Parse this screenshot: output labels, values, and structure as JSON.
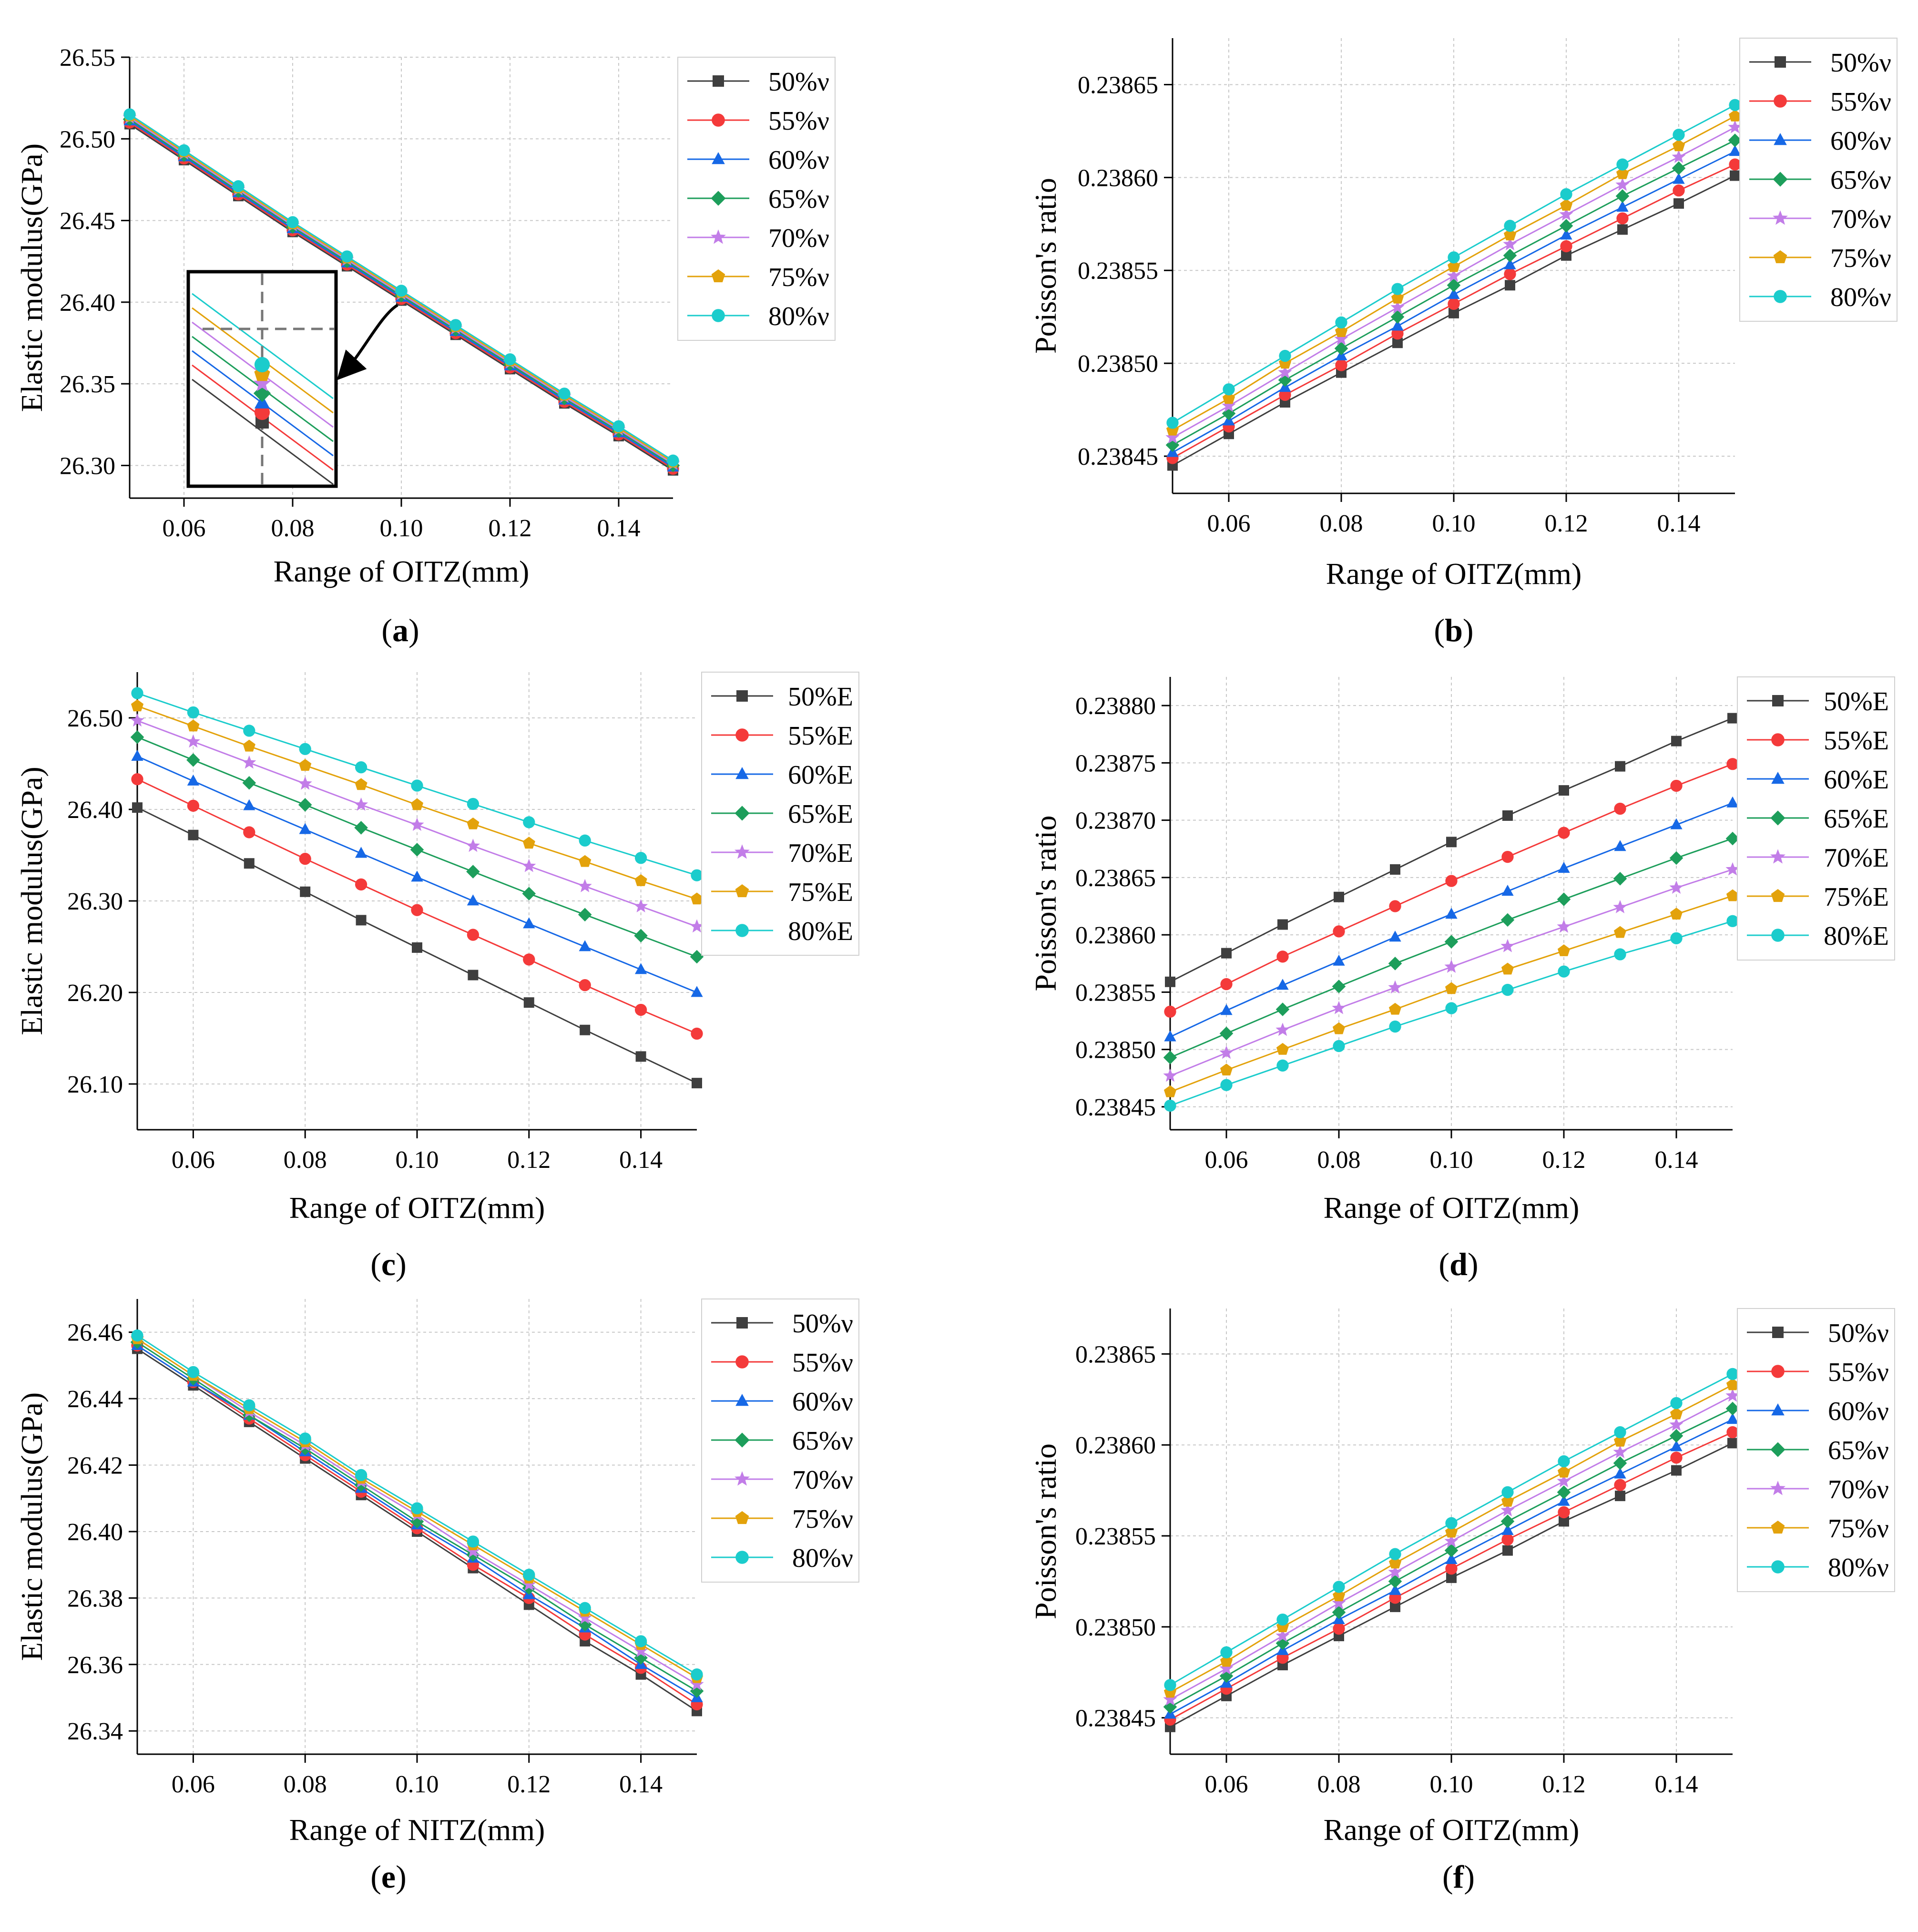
{
  "figure": {
    "x_values": [
      0.05,
      0.06,
      0.07,
      0.08,
      0.09,
      0.1,
      0.11,
      0.12,
      0.13,
      0.14,
      0.15
    ],
    "series_colors": [
      "#3f3f3f",
      "#f43a3a",
      "#1668e6",
      "#1d9e5b",
      "#c27de8",
      "#e3a20b",
      "#1bcccc"
    ],
    "marker_shapes": [
      "square",
      "circle",
      "triangle",
      "diamond",
      "star",
      "pentagon",
      "circle"
    ]
  },
  "chart_data": [
    {
      "id": "a",
      "type": "line",
      "panel_label": "a",
      "xlabel": "Range of OITZ(mm)",
      "ylabel": "Elastic modulus(GPa)",
      "xlim": [
        0.05,
        0.15
      ],
      "ylim": [
        26.28,
        26.55
      ],
      "xticks": [
        "0.06",
        "0.08",
        "0.10",
        "0.12",
        "0.14"
      ],
      "yticks": [
        "26.30",
        "26.35",
        "26.40",
        "26.45",
        "26.50",
        "26.55"
      ],
      "legend_position": "top-right",
      "has_inset": true,
      "x": [
        0.05,
        0.06,
        0.07,
        0.08,
        0.09,
        0.1,
        0.11,
        0.12,
        0.13,
        0.14,
        0.15
      ],
      "series": [
        {
          "name": "50%ν",
          "values": [
            26.509,
            26.487,
            26.465,
            26.443,
            26.422,
            26.401,
            26.38,
            26.359,
            26.338,
            26.318,
            26.297
          ]
        },
        {
          "name": "55%ν",
          "values": [
            26.51,
            26.488,
            26.466,
            26.444,
            26.423,
            26.402,
            26.381,
            26.36,
            26.339,
            26.319,
            26.298
          ]
        },
        {
          "name": "60%ν",
          "values": [
            26.511,
            26.489,
            26.467,
            26.445,
            26.424,
            26.403,
            26.382,
            26.361,
            26.34,
            26.32,
            26.299
          ]
        },
        {
          "name": "65%ν",
          "values": [
            26.512,
            26.49,
            26.468,
            26.446,
            26.425,
            26.404,
            26.383,
            26.362,
            26.341,
            26.321,
            26.3
          ]
        },
        {
          "name": "70%ν",
          "values": [
            26.513,
            26.491,
            26.469,
            26.447,
            26.426,
            26.405,
            26.384,
            26.363,
            26.342,
            26.322,
            26.301
          ]
        },
        {
          "name": "75%ν",
          "values": [
            26.514,
            26.492,
            26.47,
            26.448,
            26.427,
            26.406,
            26.385,
            26.364,
            26.343,
            26.323,
            26.302
          ]
        },
        {
          "name": "80%ν",
          "values": [
            26.515,
            26.493,
            26.471,
            26.449,
            26.428,
            26.407,
            26.386,
            26.365,
            26.344,
            26.324,
            26.303
          ]
        }
      ]
    },
    {
      "id": "b",
      "type": "line",
      "panel_label": "b",
      "xlabel": "Range of OITZ(mm)",
      "ylabel": "Poisson's ratio",
      "xlim": [
        0.05,
        0.15
      ],
      "ylim": [
        0.23843,
        0.238675
      ],
      "xticks": [
        "0.06",
        "0.08",
        "0.10",
        "0.12",
        "0.14"
      ],
      "yticks": [
        "0.23845",
        "0.23850",
        "0.23855",
        "0.23860",
        "0.23865"
      ],
      "legend_position": "top-right",
      "x": [
        0.05,
        0.06,
        0.07,
        0.08,
        0.09,
        0.1,
        0.11,
        0.12,
        0.13,
        0.14,
        0.15
      ],
      "series": [
        {
          "name": "50%ν",
          "values": [
            0.238445,
            0.238462,
            0.238479,
            0.238495,
            0.238511,
            0.238527,
            0.238542,
            0.238558,
            0.238572,
            0.238586,
            0.238601
          ]
        },
        {
          "name": "55%ν",
          "values": [
            0.238449,
            0.238466,
            0.238483,
            0.238499,
            0.238516,
            0.238532,
            0.238548,
            0.238563,
            0.238578,
            0.238593,
            0.238607
          ]
        },
        {
          "name": "60%ν",
          "values": [
            0.238452,
            0.238469,
            0.238487,
            0.238504,
            0.23852,
            0.238537,
            0.238553,
            0.238569,
            0.238584,
            0.238599,
            0.238614
          ]
        },
        {
          "name": "65%ν",
          "values": [
            0.238456,
            0.238473,
            0.238491,
            0.238508,
            0.238525,
            0.238542,
            0.238558,
            0.238574,
            0.23859,
            0.238605,
            0.23862
          ]
        },
        {
          "name": "70%ν",
          "values": [
            0.23846,
            0.238477,
            0.238495,
            0.238513,
            0.23853,
            0.238547,
            0.238564,
            0.23858,
            0.238596,
            0.238611,
            0.238627
          ]
        },
        {
          "name": "75%ν",
          "values": [
            0.238464,
            0.238481,
            0.2385,
            0.238517,
            0.238535,
            0.238552,
            0.238569,
            0.238585,
            0.238602,
            0.238617,
            0.238633
          ]
        },
        {
          "name": "80%ν",
          "values": [
            0.238468,
            0.238486,
            0.238504,
            0.238522,
            0.23854,
            0.238557,
            0.238574,
            0.238591,
            0.238607,
            0.238623,
            0.238639
          ]
        }
      ]
    },
    {
      "id": "c",
      "type": "line",
      "panel_label": "c",
      "xlabel": "Range of OITZ(mm)",
      "ylabel": "Elastic modulus(GPa)",
      "xlim": [
        0.05,
        0.15
      ],
      "ylim": [
        26.05,
        26.55
      ],
      "xticks": [
        "0.06",
        "0.08",
        "0.10",
        "0.12",
        "0.14"
      ],
      "yticks": [
        "26.10",
        "26.20",
        "26.30",
        "26.40",
        "26.50"
      ],
      "legend_position": "top-right",
      "x": [
        0.05,
        0.06,
        0.07,
        0.08,
        0.09,
        0.1,
        0.11,
        0.12,
        0.13,
        0.14,
        0.15
      ],
      "series": [
        {
          "name": "50%E",
          "values": [
            26.402,
            26.372,
            26.341,
            26.31,
            26.279,
            26.249,
            26.219,
            26.189,
            26.159,
            26.13,
            26.101
          ]
        },
        {
          "name": "55%E",
          "values": [
            26.433,
            26.404,
            26.375,
            26.346,
            26.318,
            26.29,
            26.263,
            26.236,
            26.208,
            26.181,
            26.155
          ]
        },
        {
          "name": "60%E",
          "values": [
            26.458,
            26.431,
            26.404,
            26.378,
            26.352,
            26.326,
            26.3,
            26.275,
            26.25,
            26.225,
            26.2
          ]
        },
        {
          "name": "65%E",
          "values": [
            26.479,
            26.454,
            26.429,
            26.405,
            26.38,
            26.356,
            26.332,
            26.308,
            26.285,
            26.262,
            26.239
          ]
        },
        {
          "name": "70%E",
          "values": [
            26.497,
            26.474,
            26.451,
            26.428,
            26.405,
            26.383,
            26.36,
            26.338,
            26.316,
            26.294,
            26.272
          ]
        },
        {
          "name": "75%E",
          "values": [
            26.513,
            26.491,
            26.469,
            26.448,
            26.427,
            26.405,
            26.384,
            26.363,
            26.343,
            26.322,
            26.302
          ]
        },
        {
          "name": "80%E",
          "values": [
            26.527,
            26.506,
            26.486,
            26.466,
            26.446,
            26.426,
            26.406,
            26.386,
            26.366,
            26.347,
            26.328
          ]
        }
      ]
    },
    {
      "id": "d",
      "type": "line",
      "panel_label": "d",
      "xlabel": "Range of OITZ(mm)",
      "ylabel": "Poisson's ratio",
      "xlim": [
        0.05,
        0.15
      ],
      "ylim": [
        0.23843,
        0.238825
      ],
      "xticks": [
        "0.06",
        "0.08",
        "0.10",
        "0.12",
        "0.14"
      ],
      "yticks": [
        "0.23845",
        "0.23850",
        "0.23855",
        "0.23860",
        "0.23865",
        "0.23870",
        "0.23875",
        "0.23880"
      ],
      "legend_position": "top-right",
      "x": [
        0.05,
        0.06,
        0.07,
        0.08,
        0.09,
        0.1,
        0.11,
        0.12,
        0.13,
        0.14,
        0.15
      ],
      "series": [
        {
          "name": "50%E",
          "values": [
            0.238559,
            0.238584,
            0.238609,
            0.238633,
            0.238657,
            0.238681,
            0.238704,
            0.238726,
            0.238747,
            0.238769,
            0.238789
          ]
        },
        {
          "name": "55%E",
          "values": [
            0.238533,
            0.238557,
            0.238581,
            0.238603,
            0.238625,
            0.238647,
            0.238668,
            0.238689,
            0.23871,
            0.23873,
            0.238749
          ]
        },
        {
          "name": "60%E",
          "values": [
            0.238511,
            0.238534,
            0.238556,
            0.238577,
            0.238598,
            0.238618,
            0.238638,
            0.238658,
            0.238677,
            0.238696,
            0.238715
          ]
        },
        {
          "name": "65%E",
          "values": [
            0.238493,
            0.238514,
            0.238535,
            0.238555,
            0.238575,
            0.238594,
            0.238613,
            0.238631,
            0.238649,
            0.238667,
            0.238684
          ]
        },
        {
          "name": "70%E",
          "values": [
            0.238477,
            0.238497,
            0.238517,
            0.238536,
            0.238554,
            0.238572,
            0.23859,
            0.238607,
            0.238624,
            0.238641,
            0.238657
          ]
        },
        {
          "name": "75%E",
          "values": [
            0.238463,
            0.238482,
            0.2385,
            0.238518,
            0.238535,
            0.238553,
            0.23857,
            0.238586,
            0.238602,
            0.238618,
            0.238634
          ]
        },
        {
          "name": "80%E",
          "values": [
            0.238451,
            0.238469,
            0.238486,
            0.238503,
            0.23852,
            0.238536,
            0.238552,
            0.238568,
            0.238583,
            0.238597,
            0.238612
          ]
        }
      ]
    },
    {
      "id": "e",
      "type": "line",
      "panel_label": "e",
      "xlabel": "Range of NITZ(mm)",
      "ylabel": "Elastic modulus(GPa)",
      "xlim": [
        0.05,
        0.15
      ],
      "ylim": [
        26.333,
        26.47
      ],
      "xticks": [
        "0.06",
        "0.08",
        "0.10",
        "0.12",
        "0.14"
      ],
      "yticks": [
        "26.34",
        "26.36",
        "26.38",
        "26.40",
        "26.42",
        "26.44",
        "26.46"
      ],
      "legend_position": "top-right",
      "x": [
        0.05,
        0.06,
        0.07,
        0.08,
        0.09,
        0.1,
        0.11,
        0.12,
        0.13,
        0.14,
        0.15
      ],
      "series": [
        {
          "name": "50%ν",
          "values": [
            26.455,
            26.444,
            26.433,
            26.422,
            26.411,
            26.4,
            26.389,
            26.378,
            26.367,
            26.357,
            26.346
          ]
        },
        {
          "name": "55%ν",
          "values": [
            26.456,
            26.445,
            26.434,
            26.423,
            26.412,
            26.401,
            26.39,
            26.38,
            26.369,
            26.359,
            26.348
          ]
        },
        {
          "name": "60%ν",
          "values": [
            26.456,
            26.445,
            26.435,
            26.424,
            26.413,
            26.402,
            26.392,
            26.381,
            26.371,
            26.36,
            26.35
          ]
        },
        {
          "name": "65%ν",
          "values": [
            26.457,
            26.446,
            26.435,
            26.425,
            26.414,
            26.403,
            26.393,
            26.383,
            26.372,
            26.362,
            26.352
          ]
        },
        {
          "name": "70%ν",
          "values": [
            26.458,
            26.447,
            26.436,
            26.426,
            26.415,
            26.405,
            26.394,
            26.384,
            26.374,
            26.364,
            26.354
          ]
        },
        {
          "name": "75%ν",
          "values": [
            26.458,
            26.447,
            26.437,
            26.427,
            26.416,
            26.406,
            26.396,
            26.386,
            26.376,
            26.366,
            26.356
          ]
        },
        {
          "name": "80%ν",
          "values": [
            26.459,
            26.448,
            26.438,
            26.428,
            26.417,
            26.407,
            26.397,
            26.387,
            26.377,
            26.367,
            26.357
          ]
        }
      ]
    },
    {
      "id": "f",
      "type": "line",
      "panel_label": "f",
      "xlabel": "Range of OITZ(mm)",
      "ylabel": "Poisson's ratio",
      "xlim": [
        0.05,
        0.15
      ],
      "ylim": [
        0.23843,
        0.238675
      ],
      "xticks": [
        "0.06",
        "0.08",
        "0.10",
        "0.12",
        "0.14"
      ],
      "yticks": [
        "0.23845",
        "0.23850",
        "0.23855",
        "0.23860",
        "0.23865"
      ],
      "legend_position": "top-right",
      "x": [
        0.05,
        0.06,
        0.07,
        0.08,
        0.09,
        0.1,
        0.11,
        0.12,
        0.13,
        0.14,
        0.15
      ],
      "series": [
        {
          "name": "50%ν",
          "values": [
            0.238445,
            0.238462,
            0.238479,
            0.238495,
            0.238511,
            0.238527,
            0.238542,
            0.238558,
            0.238572,
            0.238586,
            0.238601
          ]
        },
        {
          "name": "55%ν",
          "values": [
            0.238449,
            0.238466,
            0.238483,
            0.238499,
            0.238516,
            0.238532,
            0.238548,
            0.238563,
            0.238578,
            0.238593,
            0.238607
          ]
        },
        {
          "name": "60%ν",
          "values": [
            0.238452,
            0.238469,
            0.238487,
            0.238504,
            0.23852,
            0.238537,
            0.238553,
            0.238569,
            0.238584,
            0.238599,
            0.238614
          ]
        },
        {
          "name": "65%ν",
          "values": [
            0.238456,
            0.238473,
            0.238491,
            0.238508,
            0.238525,
            0.238542,
            0.238558,
            0.238574,
            0.23859,
            0.238605,
            0.23862
          ]
        },
        {
          "name": "70%ν",
          "values": [
            0.23846,
            0.238477,
            0.238495,
            0.238513,
            0.23853,
            0.238547,
            0.238564,
            0.23858,
            0.238596,
            0.238611,
            0.238627
          ]
        },
        {
          "name": "75%ν",
          "values": [
            0.238464,
            0.238481,
            0.2385,
            0.238517,
            0.238535,
            0.238552,
            0.238569,
            0.238585,
            0.238602,
            0.238617,
            0.238633
          ]
        },
        {
          "name": "80%ν",
          "values": [
            0.238468,
            0.238486,
            0.238504,
            0.238522,
            0.23854,
            0.238557,
            0.238574,
            0.238591,
            0.238607,
            0.238623,
            0.238639
          ]
        }
      ]
    }
  ]
}
